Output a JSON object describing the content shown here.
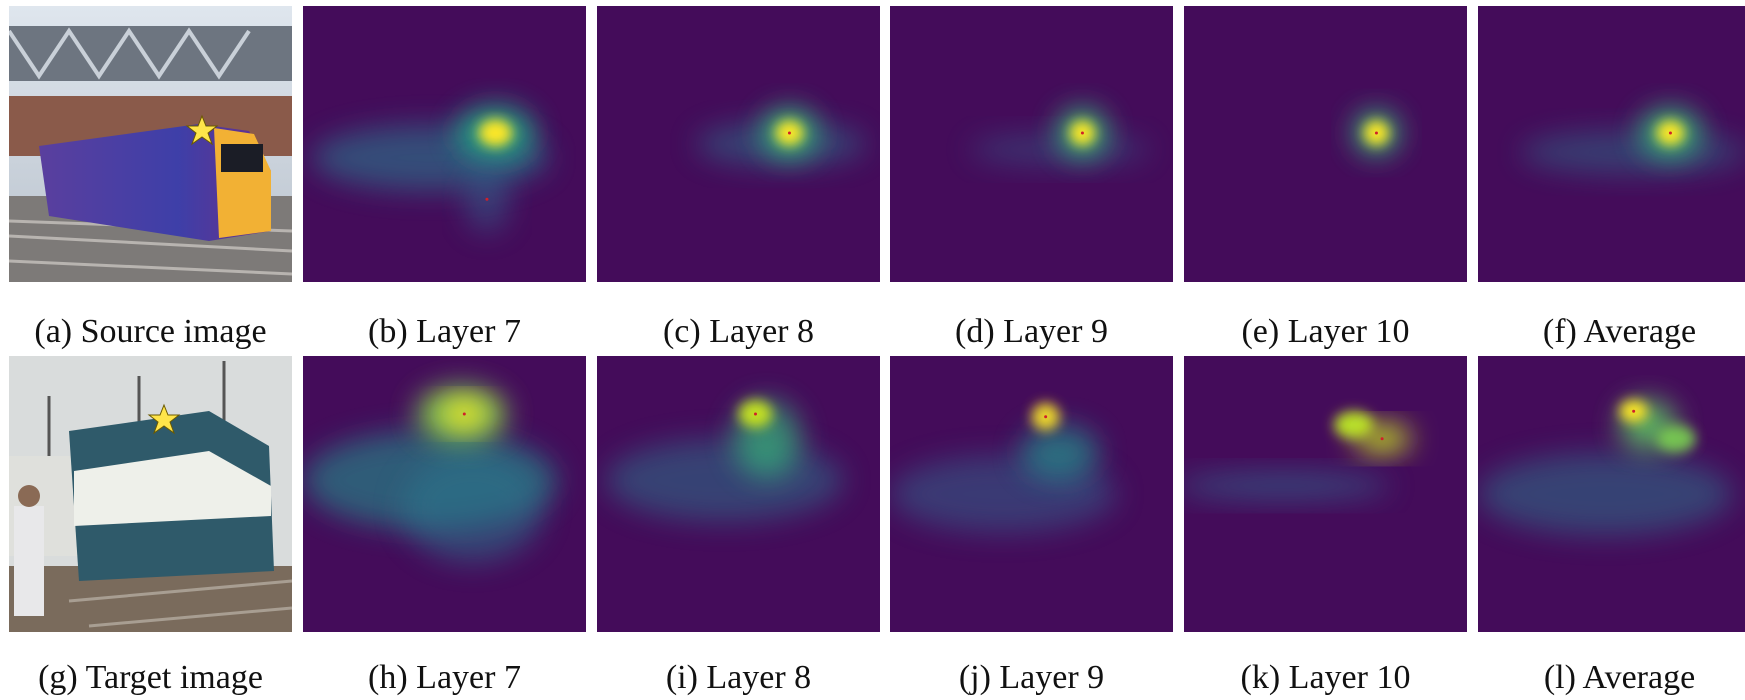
{
  "rows": [
    [
      "(a) Source image",
      "(b) Layer 7",
      "(c) Layer 8",
      "(d) Layer 9",
      "(e) Layer 10",
      "(f) Average"
    ],
    [
      "(g) Target image",
      "(h) Layer 7",
      "(i) Layer 8",
      "(j) Layer 9",
      "(k) Layer 10",
      "(l) Average"
    ]
  ]
}
